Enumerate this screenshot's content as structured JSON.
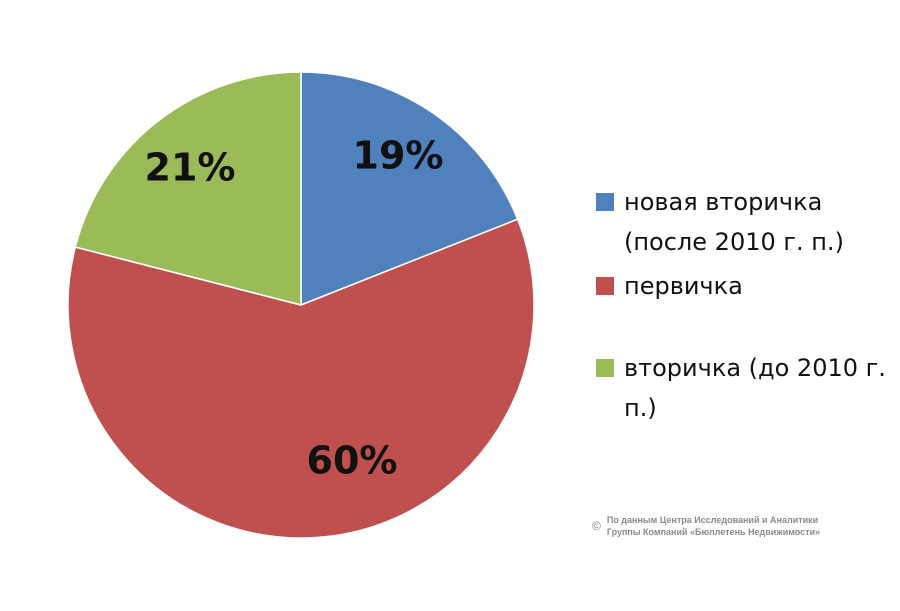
{
  "chart_data": {
    "type": "pie",
    "slices": [
      {
        "label": "новая вторичка (после 2010 г. п.)",
        "value": 19,
        "value_label": "19%",
        "color": "#4f81bd"
      },
      {
        "label": "первичка",
        "value": 60,
        "value_label": "60%",
        "color": "#c0504d"
      },
      {
        "label": "вторичка (до 2010 г. п.)",
        "value": 21,
        "value_label": "21%",
        "color": "#9bbb59"
      }
    ],
    "start_angle": "12 o'clock",
    "direction": "clockwise",
    "legend_position": "right"
  },
  "source_note": {
    "symbol": "©",
    "line1": "По данным Центра Исследований и Аналитики",
    "line2": "Группы Компаний «Бюллетень Недвижимости»"
  }
}
